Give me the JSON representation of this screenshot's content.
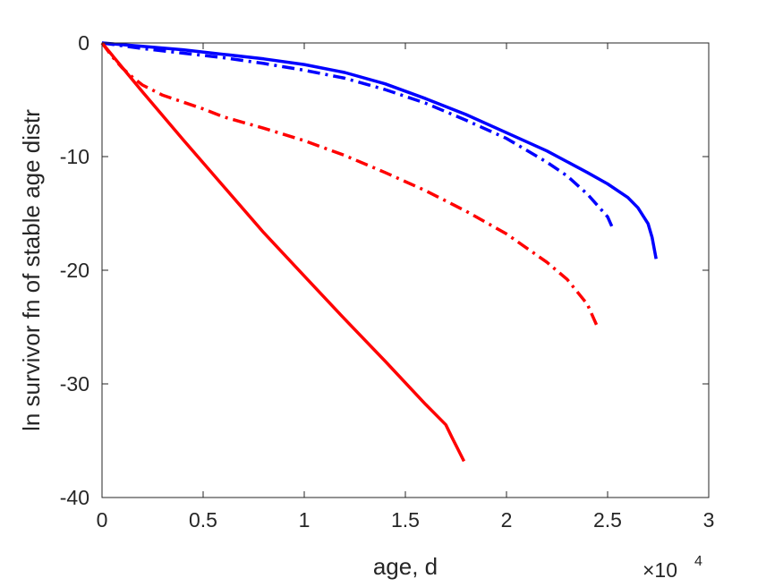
{
  "chart_data": {
    "type": "line",
    "title": "",
    "xlabel": "age, d",
    "ylabel": "ln survivor fn of stable age distr",
    "xlim": [
      0,
      30000
    ],
    "ylim": [
      -40,
      0
    ],
    "x_multiplier_label": "×10",
    "x_multiplier_exponent": "4",
    "x_ticks": [
      0,
      5000,
      10000,
      15000,
      20000,
      25000,
      30000
    ],
    "x_tick_labels": [
      "0",
      "0.5",
      "1",
      "1.5",
      "2",
      "2.5",
      "3"
    ],
    "y_ticks": [
      0,
      -10,
      -20,
      -30,
      -40
    ],
    "y_tick_labels": [
      "0",
      "-10",
      "-20",
      "-30",
      "-40"
    ],
    "grid": false,
    "series": [
      {
        "color": "#0000ff",
        "style": "solid",
        "x": [
          0,
          2000,
          4000,
          6000,
          8000,
          10000,
          12000,
          14000,
          16000,
          18000,
          20000,
          22000,
          24000,
          25000,
          26000,
          26500,
          27000,
          27200,
          27400
        ],
        "y": [
          0,
          -0.3,
          -0.6,
          -1.0,
          -1.4,
          -1.9,
          -2.6,
          -3.6,
          -4.9,
          -6.3,
          -7.9,
          -9.5,
          -11.4,
          -12.4,
          -13.6,
          -14.5,
          -15.9,
          -17.1,
          -19.0
        ]
      },
      {
        "color": "#0000ff",
        "style": "dashdot",
        "x": [
          0,
          2000,
          4000,
          6000,
          8000,
          10000,
          12000,
          14000,
          16000,
          18000,
          20000,
          22000,
          23000,
          24000,
          24500,
          25000,
          25300
        ],
        "y": [
          0,
          -0.5,
          -0.9,
          -1.3,
          -1.8,
          -2.4,
          -3.1,
          -4.1,
          -5.3,
          -6.8,
          -8.4,
          -10.5,
          -11.7,
          -13.3,
          -14.3,
          -15.3,
          -16.5
        ]
      },
      {
        "color": "#ff0000",
        "style": "dashdot",
        "x": [
          0,
          500,
          1000,
          1500,
          2000,
          3000,
          4000,
          5000,
          6000,
          8000,
          10000,
          12000,
          14000,
          16000,
          18000,
          20000,
          22000,
          23000,
          24000,
          24500
        ],
        "y": [
          0,
          -1.2,
          -2.2,
          -3.0,
          -3.7,
          -4.6,
          -5.2,
          -5.8,
          -6.5,
          -7.5,
          -8.6,
          -9.9,
          -11.4,
          -13.0,
          -14.8,
          -16.8,
          -19.3,
          -20.8,
          -23.0,
          -25.0
        ]
      },
      {
        "color": "#ff0000",
        "style": "solid",
        "x": [
          0,
          2000,
          4000,
          6000,
          8000,
          10000,
          12000,
          14000,
          16000,
          17000,
          17300,
          17500,
          17700,
          17900
        ],
        "y": [
          0,
          -4.3,
          -8.5,
          -12.6,
          -16.7,
          -20.5,
          -24.3,
          -28.0,
          -31.8,
          -33.6,
          -34.7,
          -35.4,
          -36.1,
          -36.8
        ]
      }
    ]
  }
}
